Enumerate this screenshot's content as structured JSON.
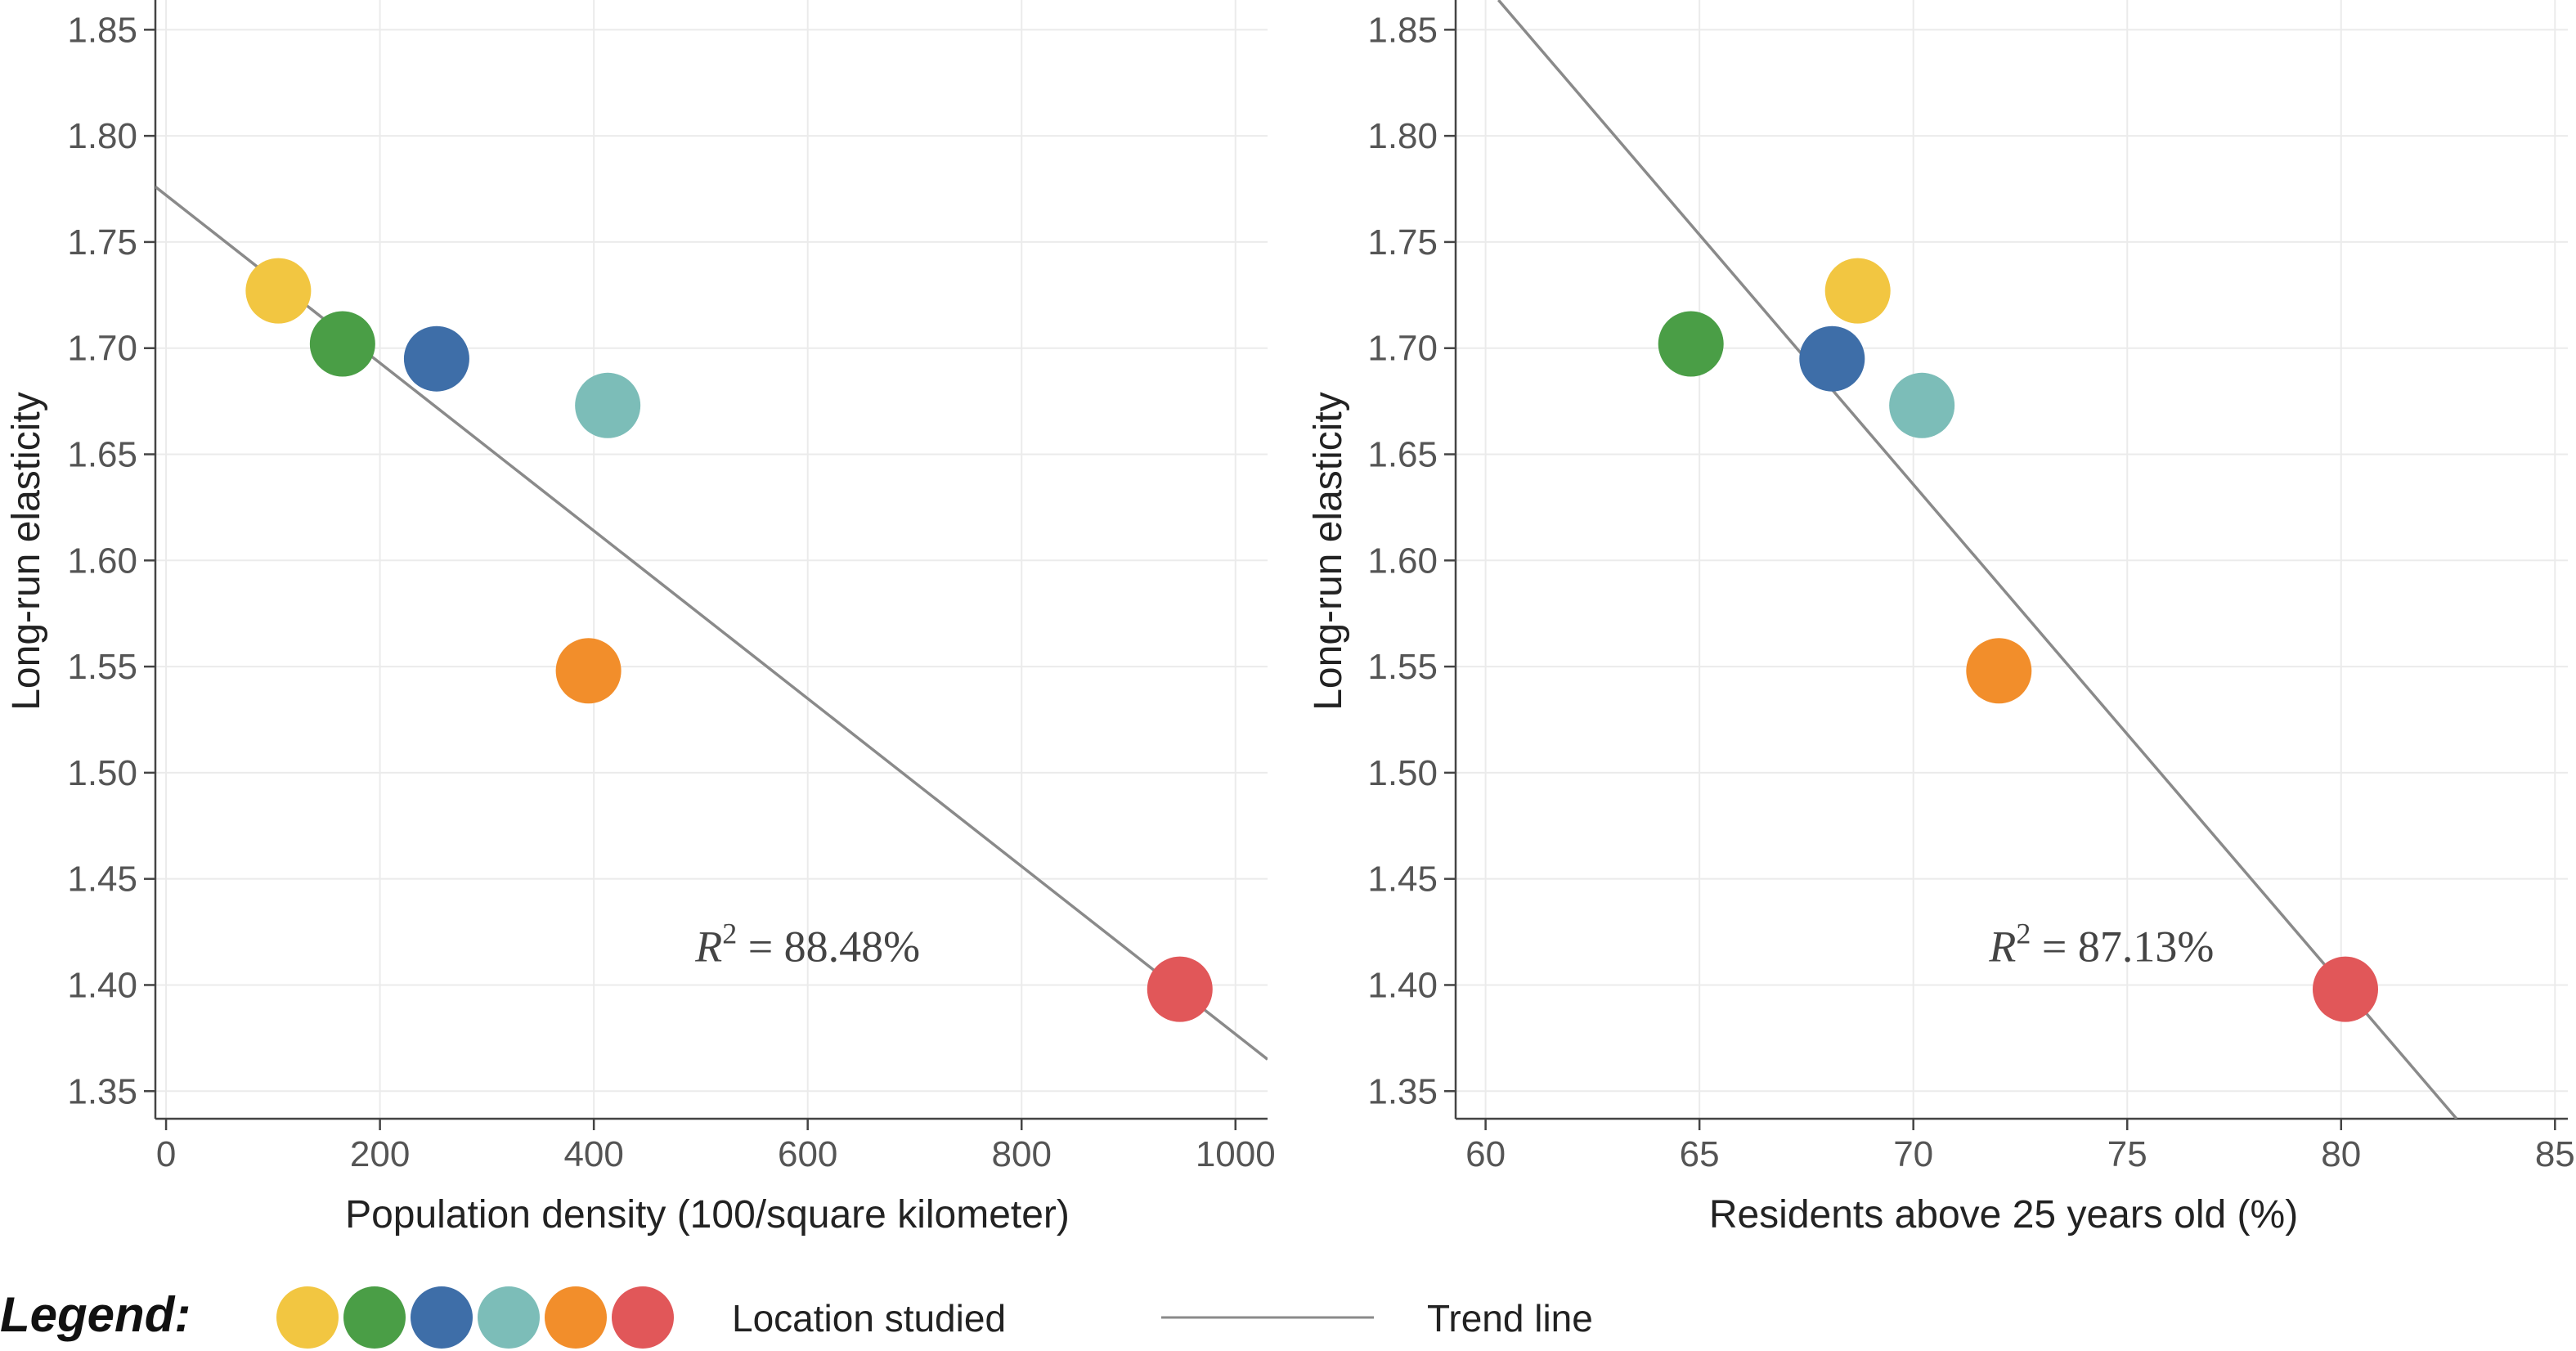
{
  "chart_data": [
    {
      "type": "scatter",
      "title": "",
      "xlabel": "Population density (100/square kilometer)",
      "ylabel": "Long-run elasticity",
      "xlim": [
        -10,
        1030
      ],
      "ylim": [
        1.337,
        1.864
      ],
      "xticks": [
        0,
        200,
        400,
        600,
        800,
        1000
      ],
      "yticks": [
        1.35,
        1.4,
        1.45,
        1.5,
        1.55,
        1.6,
        1.65,
        1.7,
        1.75,
        1.8,
        1.85
      ],
      "grid": true,
      "points": [
        {
          "x": 105,
          "y": 1.727,
          "color": "#F2C641"
        },
        {
          "x": 165,
          "y": 1.702,
          "color": "#4A9E46"
        },
        {
          "x": 253,
          "y": 1.695,
          "color": "#3E6EA8"
        },
        {
          "x": 413,
          "y": 1.673,
          "color": "#7CBDB8"
        },
        {
          "x": 395,
          "y": 1.548,
          "color": "#F28E2B"
        },
        {
          "x": 948,
          "y": 1.398,
          "color": "#E15759"
        }
      ],
      "trend_line": {
        "x": [
          -10,
          1030
        ],
        "y": [
          1.776,
          1.365
        ]
      },
      "annotation": {
        "text_var": "R",
        "text_sup": "2",
        "text_rest": " = 88.48%",
        "x": 600,
        "y": 1.418
      }
    },
    {
      "type": "scatter",
      "title": "",
      "xlabel": "Residents above 25 years old (%)",
      "ylabel": "Long-run elasticity",
      "xlim": [
        59.3,
        85.3
      ],
      "ylim": [
        1.337,
        1.864
      ],
      "xticks": [
        60,
        65,
        70,
        75,
        80,
        85
      ],
      "yticks": [
        1.35,
        1.4,
        1.45,
        1.5,
        1.55,
        1.6,
        1.65,
        1.7,
        1.75,
        1.8,
        1.85
      ],
      "grid": true,
      "points": [
        {
          "x": 68.7,
          "y": 1.727,
          "color": "#F2C641"
        },
        {
          "x": 64.8,
          "y": 1.702,
          "color": "#4A9E46"
        },
        {
          "x": 68.1,
          "y": 1.695,
          "color": "#3E6EA8"
        },
        {
          "x": 70.2,
          "y": 1.673,
          "color": "#7CBDB8"
        },
        {
          "x": 72.0,
          "y": 1.548,
          "color": "#F28E2B"
        },
        {
          "x": 80.1,
          "y": 1.398,
          "color": "#E15759"
        }
      ],
      "trend_line": {
        "x": [
          60.3,
          82.7
        ],
        "y": [
          1.864,
          1.337
        ]
      },
      "annotation": {
        "text_var": "R",
        "text_sup": "2",
        "text_rest": " = 87.13%",
        "x": 74.4,
        "y": 1.418
      }
    }
  ],
  "legend": {
    "title": "Legend:",
    "location_label": "Location studied",
    "trend_label": "Trend line",
    "swatch_colors": [
      "#F2C641",
      "#4A9E46",
      "#3E6EA8",
      "#7CBDB8",
      "#F28E2B",
      "#E15759"
    ],
    "trend_color": "#8a8a8a"
  },
  "colors": {
    "grid": "#ebebeb",
    "axis": "#444444",
    "trend": "#8a8a8a"
  }
}
